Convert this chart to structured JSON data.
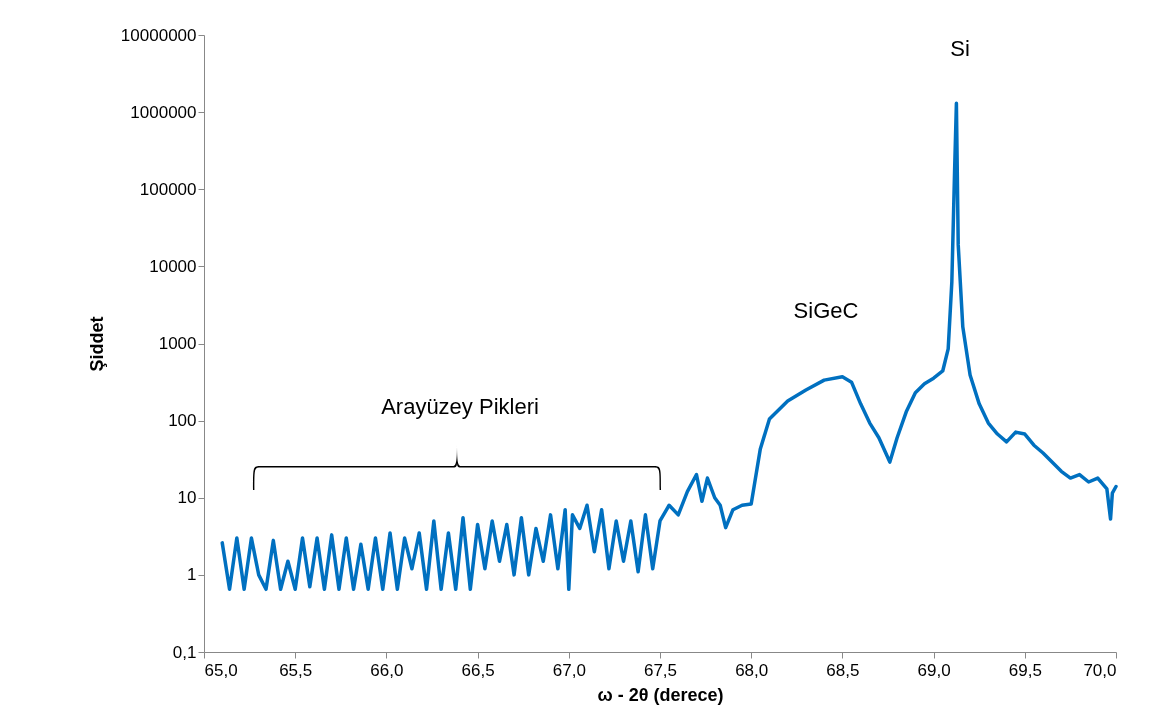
{
  "chart_data": {
    "type": "line",
    "xlabel": "ω - 2θ (derece)",
    "ylabel": "Şiddet",
    "log": "y",
    "grid": false,
    "marker": "none",
    "line_style": "solid",
    "xlim": [
      65.0,
      70.0
    ],
    "xticks": [
      {
        "value": 65.0,
        "label": "65,0"
      },
      {
        "value": 65.5,
        "label": "65,5"
      },
      {
        "value": 66.0,
        "label": "66,0"
      },
      {
        "value": 66.5,
        "label": "66,5"
      },
      {
        "value": 67.0,
        "label": "67,0"
      },
      {
        "value": 67.5,
        "label": "67,5"
      },
      {
        "value": 68.0,
        "label": "68,0"
      },
      {
        "value": 68.5,
        "label": "68,5"
      },
      {
        "value": 69.0,
        "label": "69,0"
      },
      {
        "value": 69.5,
        "label": "69,5"
      },
      {
        "value": 70.0,
        "label": "70,0"
      }
    ],
    "ylim": [
      0.1,
      10000000
    ],
    "yticks": [
      {
        "value": 0.1,
        "label": "0,1"
      },
      1,
      10,
      100,
      1000,
      10000,
      100000,
      1000000,
      10000000
    ],
    "annotations": [
      "Si",
      "SiGeC",
      "Arayüzey Pikleri"
    ],
    "series": [
      {
        "color": "#0070c0",
        "x": [
          65.1,
          65.14,
          65.18,
          65.22,
          65.26,
          65.3,
          65.34,
          65.38,
          65.42,
          65.46,
          65.5,
          65.54,
          65.58,
          65.62,
          65.66,
          65.7,
          65.74,
          65.78,
          65.82,
          65.86,
          65.9,
          65.94,
          65.98,
          66.02,
          66.06,
          66.1,
          66.14,
          66.18,
          66.22,
          66.26,
          66.3,
          66.34,
          66.38,
          66.42,
          66.46,
          66.5,
          66.54,
          66.58,
          66.62,
          66.66,
          66.7,
          66.74,
          66.78,
          66.82,
          66.86,
          66.9,
          66.94,
          66.98,
          67.0,
          67.02,
          67.06,
          67.1,
          67.14,
          67.18,
          67.22,
          67.26,
          67.3,
          67.34,
          67.38,
          67.42,
          67.46,
          67.5,
          67.55,
          67.6,
          67.65,
          67.7,
          67.73,
          67.76,
          67.8,
          67.83,
          67.86,
          67.9,
          67.95,
          68.0,
          68.05,
          68.1,
          68.2,
          68.3,
          68.4,
          68.5,
          68.55,
          68.6,
          68.65,
          68.7,
          68.76,
          68.8,
          68.85,
          68.9,
          68.95,
          69.0,
          69.05,
          69.08,
          69.1,
          69.115,
          69.125,
          69.135,
          69.16,
          69.2,
          69.25,
          69.3,
          69.35,
          69.4,
          69.45,
          69.5,
          69.55,
          69.6,
          69.7,
          69.75,
          69.8,
          69.85,
          69.9,
          69.95,
          69.97,
          69.98,
          70.0
        ],
        "values": [
          2.6,
          0.65,
          3,
          0.65,
          3,
          1,
          0.65,
          2.8,
          0.65,
          1.5,
          0.65,
          3,
          0.7,
          3,
          0.65,
          3.3,
          0.65,
          3,
          0.65,
          2.5,
          0.65,
          3,
          0.65,
          3.5,
          0.65,
          3,
          1.2,
          3.5,
          0.65,
          5,
          0.65,
          3.5,
          0.65,
          5.5,
          0.65,
          4.5,
          1.2,
          5,
          1.5,
          4.5,
          1,
          5.5,
          1,
          4,
          1.5,
          6,
          1.2,
          7,
          0.65,
          6,
          4,
          8,
          2,
          7,
          1.2,
          5,
          1.5,
          5,
          1.1,
          6,
          1.2,
          5,
          8,
          6,
          12,
          20,
          9,
          18,
          10,
          8,
          4.1,
          7,
          8,
          8.3,
          43,
          105,
          180,
          250,
          335,
          370,
          315,
          165,
          93,
          60,
          29,
          60,
          130,
          230,
          300,
          355,
          440,
          850,
          6300,
          170000,
          1300000,
          19000,
          1650,
          390,
          165,
          93,
          67,
          53,
          71,
          67,
          48,
          38,
          22,
          18,
          20,
          16,
          18,
          13,
          5.3,
          11.5,
          14
        ]
      }
    ]
  }
}
